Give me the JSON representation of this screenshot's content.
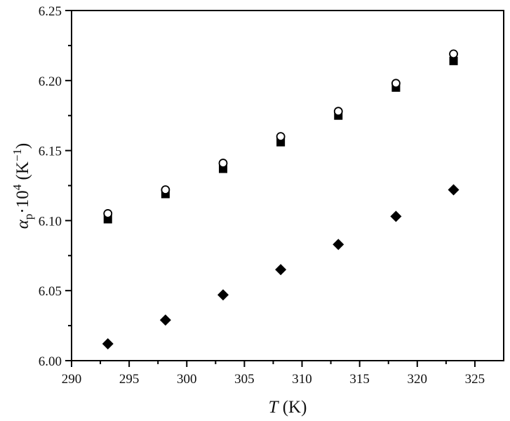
{
  "chart_data": {
    "type": "scatter",
    "title": "",
    "xlabel": "T (K)",
    "xlabel_parts": {
      "var": "T",
      "unit": " (K)"
    },
    "ylabel": "αp·10^4 (K^-1)",
    "ylabel_parts": {
      "alpha": "α",
      "sub": "p",
      "dot": "·10",
      "sup": "4",
      "unit_open": " (K",
      "unit_sup": "−1",
      "unit_close": ")"
    },
    "xlim": [
      290,
      327.5
    ],
    "ylim": [
      6.0,
      6.25
    ],
    "x_ticks": [
      290,
      295,
      300,
      305,
      310,
      315,
      320,
      325
    ],
    "x_tick_labels": [
      "290",
      "295",
      "300",
      "305",
      "310",
      "315",
      "320",
      "325"
    ],
    "y_ticks": [
      6.0,
      6.05,
      6.1,
      6.15,
      6.2,
      6.25
    ],
    "y_tick_labels": [
      "6.00",
      "6.05",
      "6.10",
      "6.15",
      "6.20",
      "6.25"
    ],
    "minor_ticks": true,
    "grid": false,
    "legend": null,
    "x": [
      293.15,
      298.15,
      303.15,
      308.15,
      313.15,
      318.15,
      323.15
    ],
    "series": [
      {
        "name": "open circles",
        "marker": "circle-open",
        "values": [
          6.105,
          6.122,
          6.141,
          6.16,
          6.178,
          6.198,
          6.219
        ]
      },
      {
        "name": "filled squares",
        "marker": "square-filled",
        "values": [
          6.101,
          6.119,
          6.137,
          6.156,
          6.175,
          6.195,
          6.214
        ]
      },
      {
        "name": "filled diamonds",
        "marker": "diamond-filled",
        "values": [
          6.012,
          6.029,
          6.047,
          6.065,
          6.083,
          6.103,
          6.122
        ]
      }
    ]
  },
  "colors": {
    "axis": "#000000",
    "marker": "#000000",
    "background": "#ffffff"
  }
}
